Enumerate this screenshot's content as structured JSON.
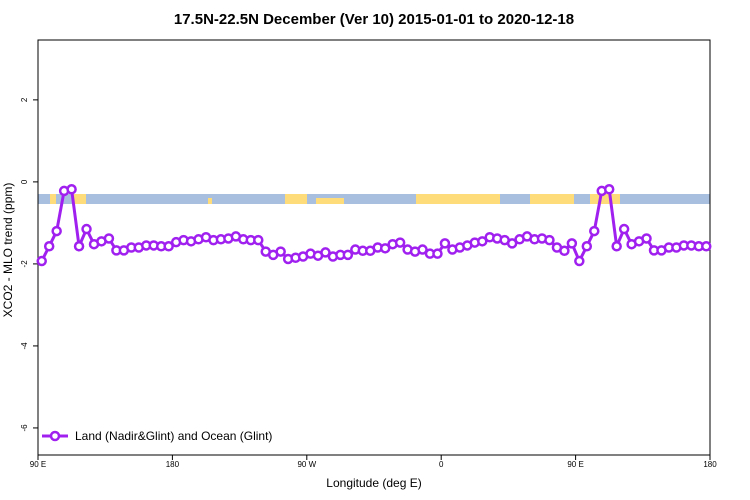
{
  "chart_data": {
    "type": "line",
    "title": "17.5N-22.5N December (Ver 10)   2015-01-01 to 2020-12-18",
    "x_label": "Longitude (deg E)",
    "y_label": "XCO2 - MLO trend (ppm)",
    "x": [
      92.5,
      97.5,
      102.5,
      107.5,
      112.5,
      117.5,
      122.5,
      127.5,
      132.5,
      137.5,
      142.5,
      147.5,
      152.5,
      157.5,
      162.5,
      167.5,
      172.5,
      177.5,
      182.5,
      187.5,
      192.5,
      197.5,
      202.5,
      207.5,
      212.5,
      217.5,
      222.5,
      227.5,
      232.5,
      237.5,
      242.5,
      247.5,
      252.5,
      257.5,
      262.5,
      267.5,
      272.5,
      277.5,
      282.5,
      287.5,
      292.5,
      297.5,
      302.5,
      307.5,
      312.5,
      317.5,
      322.5,
      327.5,
      332.5,
      337.5,
      342.5,
      347.5,
      352.5,
      357.5,
      362.5,
      367.5,
      372.5,
      377.5,
      382.5,
      387.5,
      392.5,
      397.5,
      402.5,
      407.5,
      412.5,
      417.5,
      422.5,
      427.5,
      432.5,
      437.5,
      442.5,
      447.5,
      452.5,
      457.5,
      462.5,
      467.5,
      472.5,
      477.5,
      482.5,
      487.5,
      492.5,
      497.5,
      502.5,
      507.5,
      512.5,
      517.5,
      522.5,
      527.5,
      532.5,
      537.5
    ],
    "series": [
      {
        "name": "Land (Nadir&Glint) and Ocean (Glint)",
        "color": "#a020f0",
        "values": [
          -1.93,
          -1.57,
          -1.2,
          -0.22,
          -0.18,
          -1.57,
          -1.15,
          -1.52,
          -1.45,
          -1.38,
          -1.67,
          -1.67,
          -1.6,
          -1.6,
          -1.55,
          -1.55,
          -1.57,
          -1.57,
          -1.47,
          -1.42,
          -1.45,
          -1.4,
          -1.35,
          -1.42,
          -1.4,
          -1.38,
          -1.33,
          -1.4,
          -1.42,
          -1.42,
          -1.7,
          -1.78,
          -1.7,
          -1.88,
          -1.85,
          -1.82,
          -1.75,
          -1.8,
          -1.72,
          -1.82,
          -1.78,
          -1.78,
          -1.65,
          -1.68,
          -1.68,
          -1.6,
          -1.62,
          -1.52,
          -1.48,
          -1.65,
          -1.7,
          -1.65,
          -1.75,
          -1.75,
          -1.5,
          -1.65,
          -1.6,
          -1.55,
          -1.48,
          -1.45,
          -1.35,
          -1.38,
          -1.42,
          -1.5,
          -1.4,
          -1.33,
          -1.4,
          -1.38,
          -1.42,
          -1.6,
          -1.68,
          -1.5,
          -1.93,
          -1.57,
          -1.2,
          -0.22,
          -0.18,
          -1.57,
          -1.15,
          -1.52,
          -1.45,
          -1.38,
          -1.67,
          -1.67,
          -1.6,
          -1.6,
          -1.55,
          -1.55,
          -1.57,
          -1.57
        ]
      }
    ],
    "xlim": [
      90,
      540
    ],
    "xticks": [
      {
        "value": 90,
        "label": "90 E"
      },
      180,
      {
        "value": 270,
        "label": "90 W"
      },
      {
        "value": 360,
        "label": "0"
      },
      {
        "value": 450,
        "label": "90 E"
      },
      {
        "value": 540,
        "label": "180"
      }
    ],
    "ylim": [
      -6.66,
      3.46
    ],
    "yticks": [
      -6,
      -4,
      -2,
      0,
      2
    ],
    "grid": false,
    "legend": "bottom-left"
  }
}
